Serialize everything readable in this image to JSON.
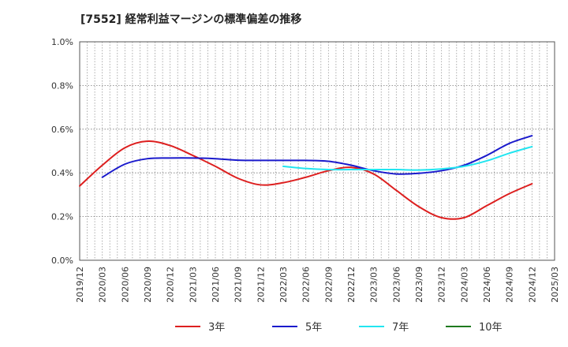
{
  "header": {
    "title": "[7552]  経常利益マージンの標準偏差の推移"
  },
  "chart_data": {
    "type": "line",
    "title": "[7552]  経常利益マージンの標準偏差の推移",
    "xlabel": "",
    "ylabel": "",
    "ylim": [
      0,
      1.0
    ],
    "y_ticks": [
      "0.0%",
      "0.2%",
      "0.4%",
      "0.6%",
      "0.8%",
      "1.0%"
    ],
    "x_ticks": [
      "2019/12",
      "2020/03",
      "2020/06",
      "2020/09",
      "2020/12",
      "2021/03",
      "2021/06",
      "2021/09",
      "2021/12",
      "2022/03",
      "2022/06",
      "2022/09",
      "2022/12",
      "2023/03",
      "2023/06",
      "2023/09",
      "2023/12",
      "2024/03",
      "2024/06",
      "2024/09",
      "2024/12",
      "2025/03"
    ],
    "grid": true,
    "legend_position": "bottom",
    "series": [
      {
        "name": "3年",
        "color": "#dd1f1f",
        "points": [
          [
            "2019/12",
            0.34
          ],
          [
            "2020/03",
            0.435
          ],
          [
            "2020/06",
            0.515
          ],
          [
            "2020/09",
            0.545
          ],
          [
            "2020/12",
            0.525
          ],
          [
            "2021/03",
            0.48
          ],
          [
            "2021/06",
            0.43
          ],
          [
            "2021/09",
            0.375
          ],
          [
            "2021/12",
            0.345
          ],
          [
            "2022/03",
            0.355
          ],
          [
            "2022/06",
            0.38
          ],
          [
            "2022/09",
            0.41
          ],
          [
            "2022/12",
            0.425
          ],
          [
            "2023/03",
            0.395
          ],
          [
            "2023/06",
            0.32
          ],
          [
            "2023/09",
            0.245
          ],
          [
            "2023/12",
            0.195
          ],
          [
            "2024/03",
            0.195
          ],
          [
            "2024/06",
            0.25
          ],
          [
            "2024/09",
            0.305
          ],
          [
            "2024/12",
            0.35
          ]
        ]
      },
      {
        "name": "5年",
        "color": "#1a1acc",
        "points": [
          [
            "2020/03",
            0.38
          ],
          [
            "2020/06",
            0.44
          ],
          [
            "2020/09",
            0.465
          ],
          [
            "2020/12",
            0.468
          ],
          [
            "2021/03",
            0.468
          ],
          [
            "2021/06",
            0.465
          ],
          [
            "2021/09",
            0.458
          ],
          [
            "2021/12",
            0.457
          ],
          [
            "2022/03",
            0.457
          ],
          [
            "2022/06",
            0.457
          ],
          [
            "2022/09",
            0.453
          ],
          [
            "2022/12",
            0.435
          ],
          [
            "2023/03",
            0.41
          ],
          [
            "2023/06",
            0.395
          ],
          [
            "2023/09",
            0.398
          ],
          [
            "2023/12",
            0.41
          ],
          [
            "2024/03",
            0.435
          ],
          [
            "2024/06",
            0.48
          ],
          [
            "2024/09",
            0.535
          ],
          [
            "2024/12",
            0.57
          ]
        ]
      },
      {
        "name": "7年",
        "color": "#22e5f0",
        "points": [
          [
            "2022/03",
            0.43
          ],
          [
            "2022/06",
            0.42
          ],
          [
            "2022/09",
            0.415
          ],
          [
            "2022/12",
            0.415
          ],
          [
            "2023/03",
            0.415
          ],
          [
            "2023/06",
            0.415
          ],
          [
            "2023/09",
            0.413
          ],
          [
            "2023/12",
            0.418
          ],
          [
            "2024/03",
            0.43
          ],
          [
            "2024/06",
            0.455
          ],
          [
            "2024/09",
            0.49
          ],
          [
            "2024/12",
            0.52
          ]
        ]
      },
      {
        "name": "10年",
        "color": "#1e7a1e",
        "points": []
      }
    ]
  }
}
